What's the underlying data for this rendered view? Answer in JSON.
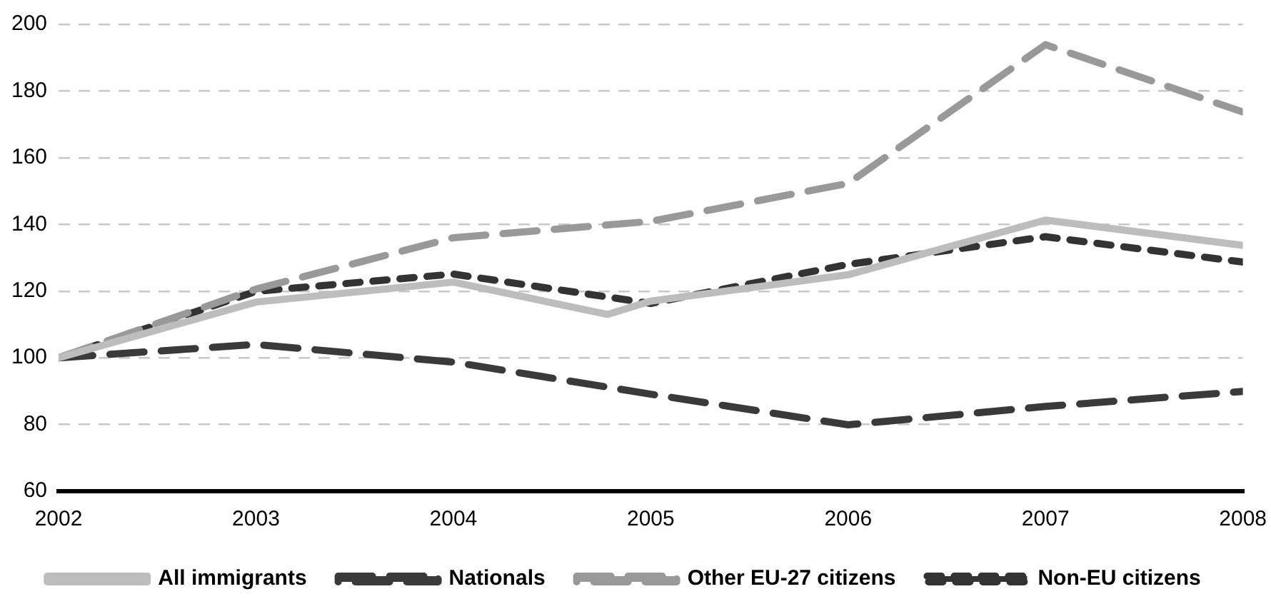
{
  "chart_data": {
    "type": "line",
    "xlim": [
      2002,
      2008
    ],
    "xticks": [
      2002,
      2003,
      2004,
      2005,
      2006,
      2007,
      2008
    ],
    "ylim": [
      60,
      200
    ],
    "yticks": [
      60,
      80,
      100,
      120,
      140,
      160,
      180,
      200
    ],
    "grid": "y",
    "legend": "bottom",
    "marker": "none",
    "series": [
      {
        "name": "All immigrants",
        "color": "#bdbdbd",
        "line_style": "solid",
        "x": [
          2002,
          2003,
          2004,
          2004.78,
          2005,
          2006,
          2007,
          2008
        ],
        "values": [
          100,
          116.7,
          122.7,
          113,
          117,
          124.9,
          141.3,
          133.7
        ]
      },
      {
        "name": "Nationals",
        "color": "#3a3a3a",
        "line_style": "dashed",
        "x": [
          2002,
          2003,
          2004,
          2005,
          2006,
          2007,
          2008
        ],
        "values": [
          100,
          104,
          98.7,
          89.1,
          79.9,
          85.4,
          89.9
        ]
      },
      {
        "name": "Other EU-27 citizens",
        "color": "#999999",
        "line_style": "dashed",
        "x": [
          2002,
          2003,
          2004,
          2005,
          2006,
          2007,
          2008
        ],
        "values": [
          100,
          120.6,
          136,
          140.9,
          152.3,
          193.9,
          173.7
        ]
      },
      {
        "name": "Non-EU citizens",
        "color": "#333333",
        "line_style": "dotted",
        "x": [
          2002,
          2003,
          2004,
          2005,
          2006,
          2007,
          2008
        ],
        "values": [
          100,
          119.9,
          125.1,
          116.3,
          128,
          136.3,
          128.7
        ]
      }
    ]
  }
}
